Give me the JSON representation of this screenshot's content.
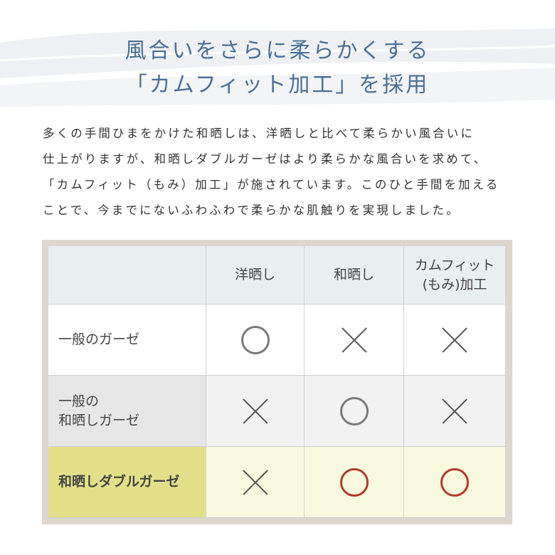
{
  "heading": {
    "line1": "風合いをさらに柔らかくする",
    "line2": "「カムフィット加工」を採用"
  },
  "description": {
    "lines": [
      "多くの手間ひまをかけた和晒しは、洋晒しと比べて柔らかい風合いに",
      "仕上がりますが、和晒しダブルガーゼはより柔らかな風合いを求めて、",
      "「カムフィット（もみ）加工」が施されています。このひと手間を加える",
      "ことで、今までにないふわふわで柔らかな肌触りを実現しました。"
    ]
  },
  "table": {
    "headers": [
      "",
      "洋晒し",
      "和晒し",
      "カムフィット\n(もみ)加工"
    ],
    "header_col3_line1": "カムフィット",
    "header_col3_line2": "(もみ)加工",
    "rows": [
      {
        "label": "一般のガーゼ",
        "values": [
          "circle",
          "cross",
          "cross"
        ]
      },
      {
        "label_line1": "一般の",
        "label_line2": "和晒しガーゼ",
        "values": [
          "cross",
          "circle",
          "cross"
        ]
      },
      {
        "label": "和晒しダブルガーゼ",
        "values": [
          "cross",
          "circle",
          "circle"
        ],
        "highlight": true
      }
    ]
  },
  "colors": {
    "title": "#4b6f96",
    "frame": "#dcd6cf",
    "header": "#e9eef1",
    "highlight_label": "#e3df88",
    "highlight_row": "#f8f8df",
    "circle_gray": "#7a7a7a",
    "circle_red": "#b03a2e"
  }
}
